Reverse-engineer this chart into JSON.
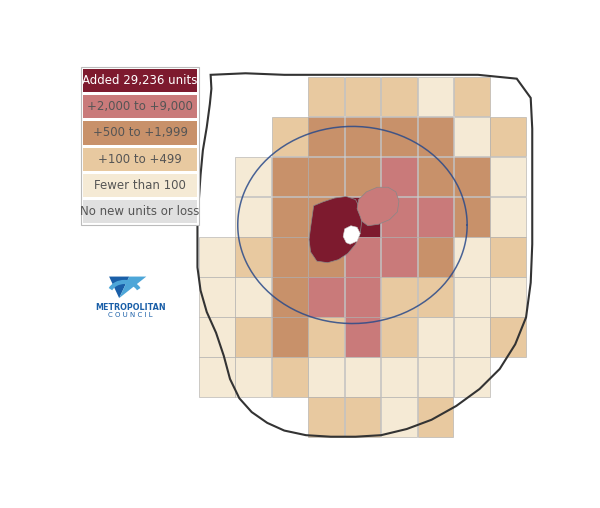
{
  "legend_labels": [
    "Added 29,236 units",
    "+2,000 to +9,000",
    "+500 to +1,999",
    "+100 to +499",
    "Fewer than 100",
    "No new units or loss"
  ],
  "legend_colors": [
    "#7d1a2e",
    "#c97a7a",
    "#c8916a",
    "#e8c9a0",
    "#f5ead5",
    "#e0e0e0"
  ],
  "bg_color": "#ffffff",
  "border_color": "#444444",
  "city_border_color": "#2a4a8a",
  "legend_text_color": "#555555",
  "logo_color": "#1a5fa8",
  "logo_color2": "#4da6d8"
}
